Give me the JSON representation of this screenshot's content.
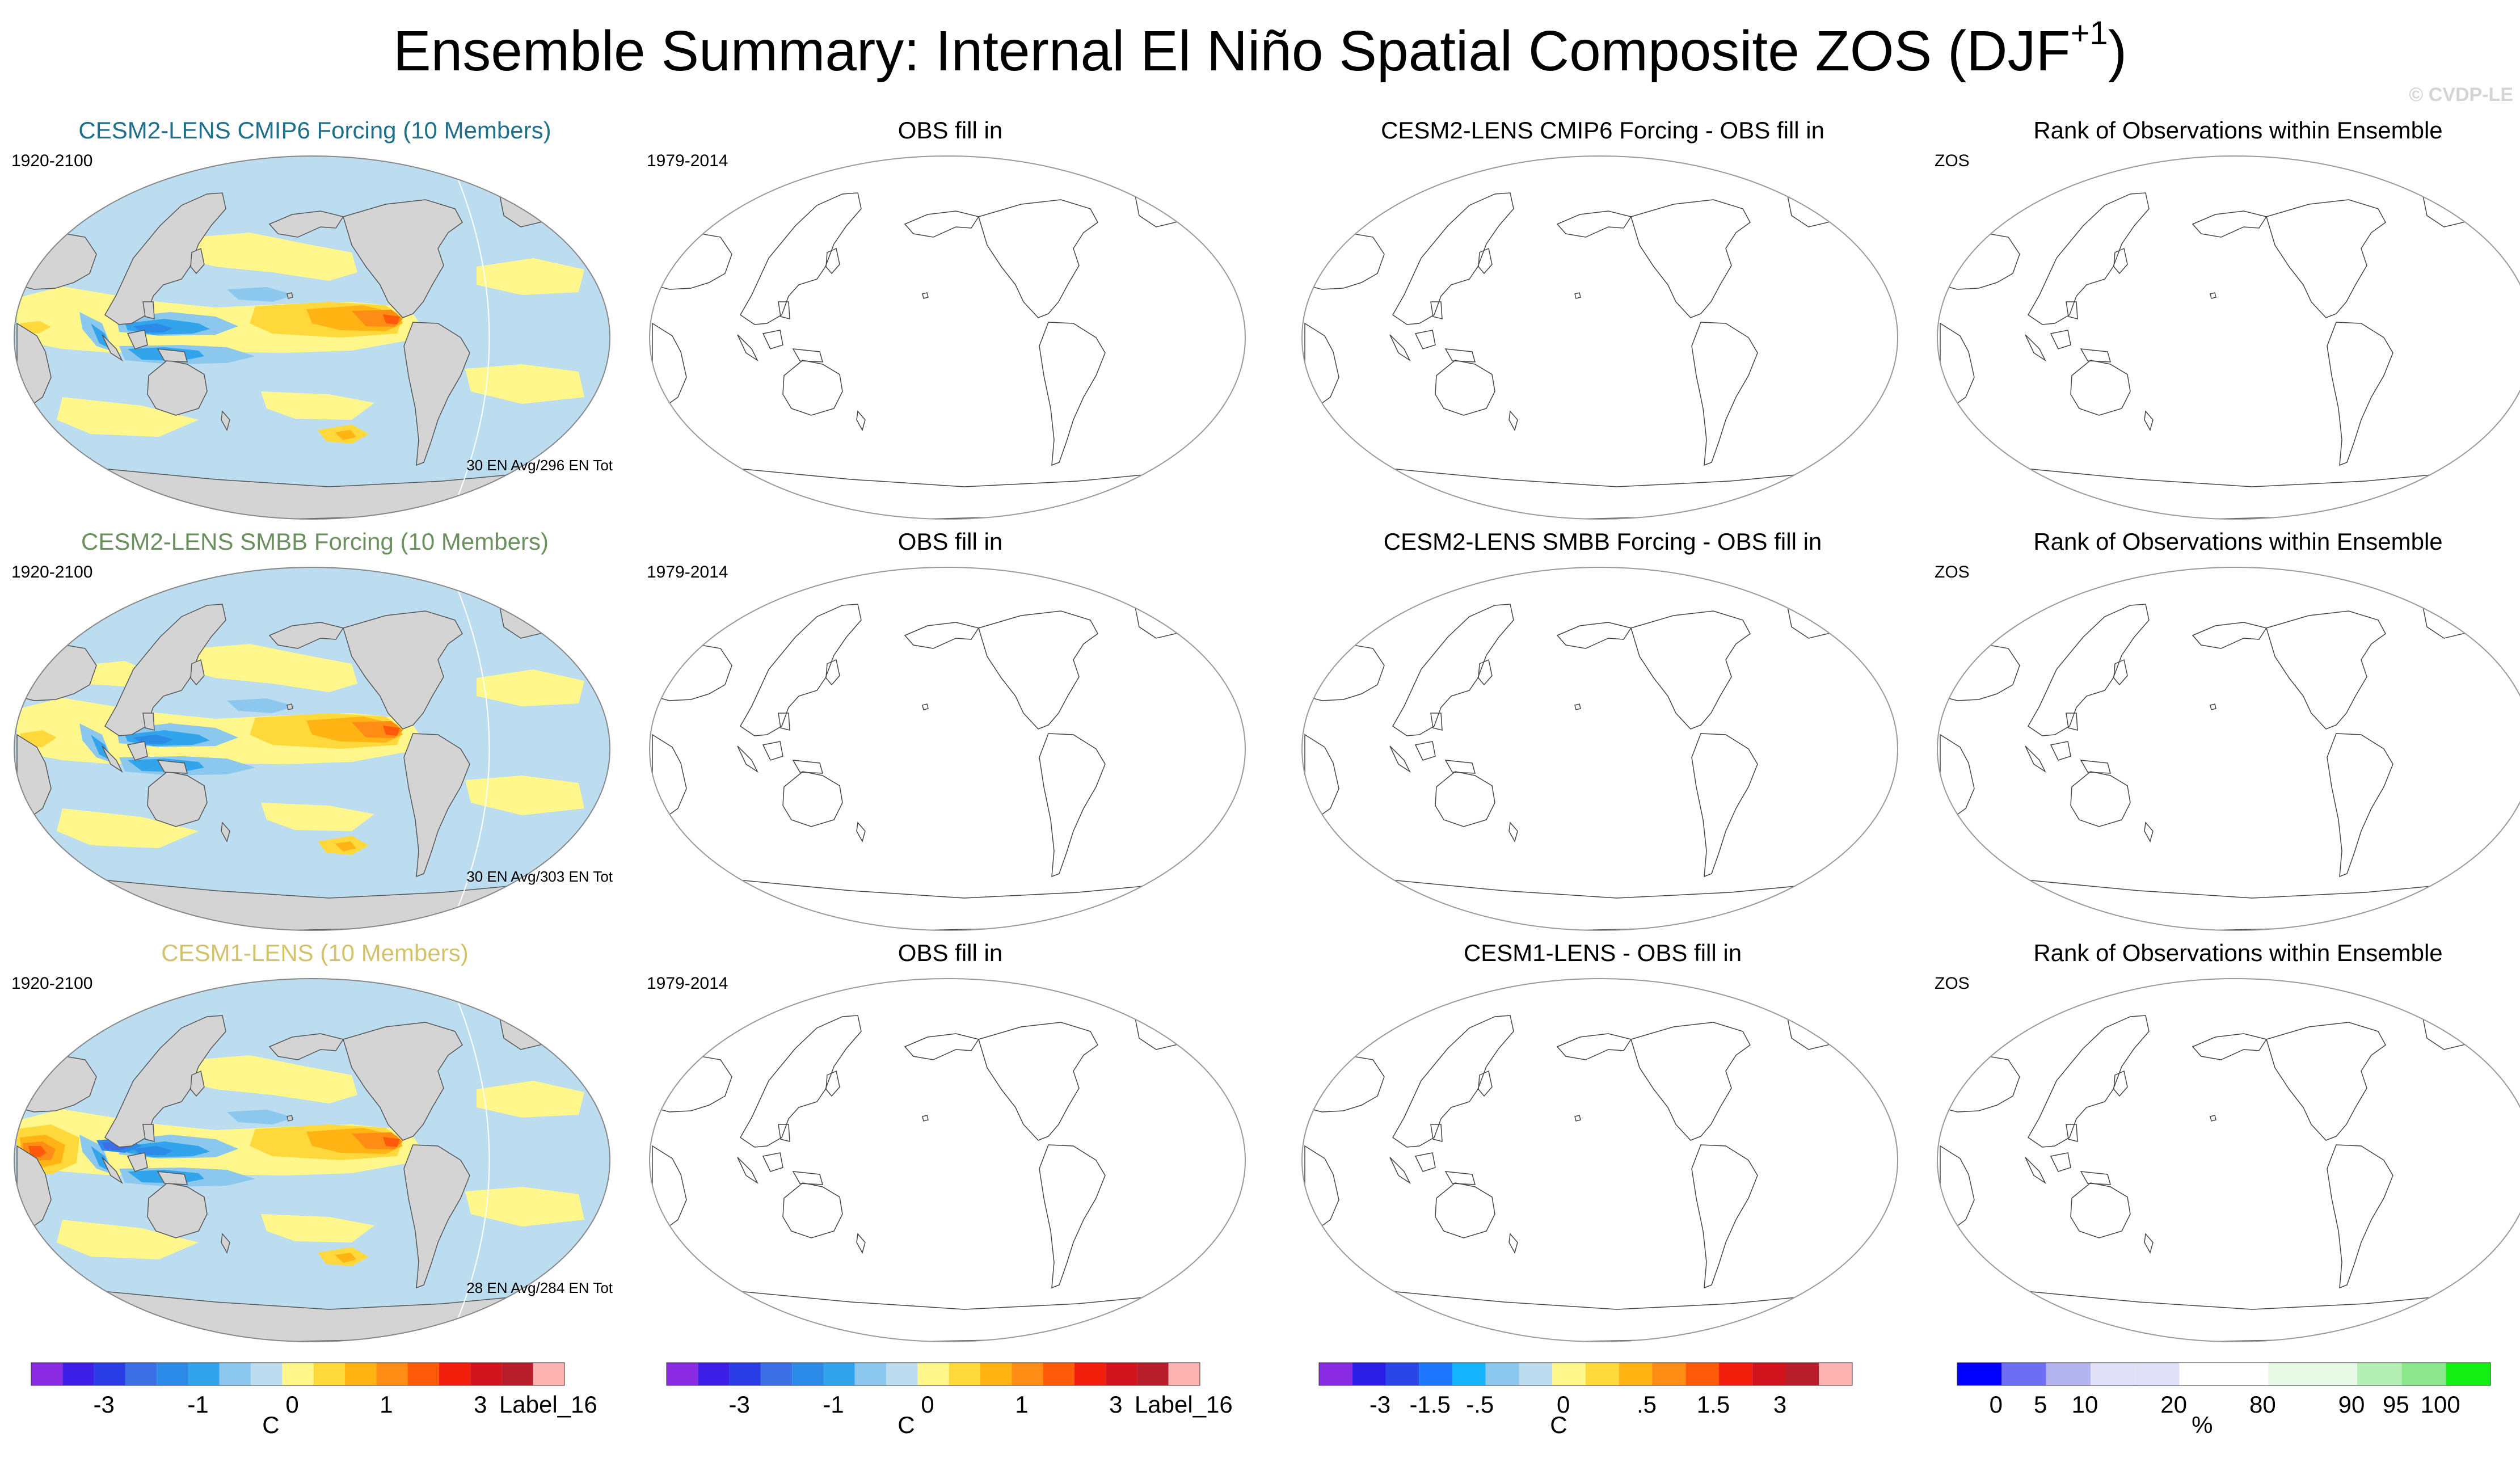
{
  "title": {
    "main": "Ensemble Summary: Internal El Niño Spatial Composite ZOS (DJF",
    "superscript": "+1",
    "close": ")"
  },
  "watermark": "© CVDP-LE",
  "rows": [
    {
      "model": {
        "title": "CESM2-LENS CMIP6 Forcing (10 Members)",
        "title_color": "#1f6f8b",
        "years": "1920-2100",
        "footnote": "30 EN Avg/296 EN Tot",
        "variant": 0
      },
      "obs": {
        "title": "OBS fill in",
        "years": "1979-2014"
      },
      "diff": {
        "title": "CESM2-LENS CMIP6 Forcing - OBS fill in"
      },
      "rank": {
        "title": "Rank of Observations within Ensemble",
        "label": "ZOS"
      }
    },
    {
      "model": {
        "title": "CESM2-LENS SMBB Forcing (10 Members)",
        "title_color": "#6b8f5e",
        "years": "1920-2100",
        "footnote": "30 EN Avg/303 EN Tot",
        "variant": 1
      },
      "obs": {
        "title": "OBS fill in",
        "years": "1979-2014"
      },
      "diff": {
        "title": "CESM2-LENS SMBB Forcing - OBS fill in"
      },
      "rank": {
        "title": "Rank of Observations within Ensemble",
        "label": "ZOS"
      }
    },
    {
      "model": {
        "title": "CESM1-LENS (10 Members)",
        "title_color": "#d2c36a",
        "years": "1920-2100",
        "footnote": "28 EN Avg/284 EN Tot",
        "variant": 2
      },
      "obs": {
        "title": "OBS fill in",
        "years": "1979-2014"
      },
      "diff": {
        "title": "CESM1-LENS - OBS fill in"
      },
      "rank": {
        "title": "Rank of Observations within Ensemble",
        "label": "ZOS"
      }
    }
  ],
  "colorbars": [
    {
      "colors": [
        "#8a2be2",
        "#3c1ee6",
        "#2a3ce6",
        "#3c6ee6",
        "#2c8ae8",
        "#32a4ec",
        "#8cc8ee",
        "#bcdcf0",
        "#fff78c",
        "#ffd93c",
        "#ffb414",
        "#ff8c14",
        "#ff5a0a",
        "#f01e0a",
        "#d2141e",
        "#b91e2d",
        "#ffb4b4"
      ],
      "ticks": [
        {
          "label": "-3",
          "pos": 2.5
        },
        {
          "label": "-1",
          "pos": 5.5
        },
        {
          "label": "0",
          "pos": 8.5
        },
        {
          "label": "1",
          "pos": 11.5
        },
        {
          "label": "3",
          "pos": 14.5
        },
        {
          "label": "Label_16",
          "pos": 17
        }
      ],
      "unit": "C"
    },
    {
      "colors": [
        "#8a2be2",
        "#3c1ee6",
        "#2a3ce6",
        "#3c6ee6",
        "#2c8ae8",
        "#32a4ec",
        "#8cc8ee",
        "#bcdcf0",
        "#fff78c",
        "#ffd93c",
        "#ffb414",
        "#ff8c14",
        "#ff5a0a",
        "#f01e0a",
        "#d2141e",
        "#b91e2d",
        "#ffb4b4"
      ],
      "ticks": [
        {
          "label": "-3",
          "pos": 2.5
        },
        {
          "label": "-1",
          "pos": 5.5
        },
        {
          "label": "0",
          "pos": 8.5
        },
        {
          "label": "1",
          "pos": 11.5
        },
        {
          "label": "3",
          "pos": 14.5
        },
        {
          "label": "Label_16",
          "pos": 17
        }
      ],
      "unit": "C"
    },
    {
      "colors": [
        "#8a2be2",
        "#2a1ee6",
        "#2a46e6",
        "#1e78ff",
        "#14b4ff",
        "#8cc8ee",
        "#bcdcf0",
        "#fff78c",
        "#ffd93c",
        "#ffb414",
        "#ff8c14",
        "#ff5a0a",
        "#f01e0a",
        "#d2141e",
        "#b91e2d",
        "#ffb4b4"
      ],
      "ticks": [
        {
          "label": "-3",
          "pos": 2
        },
        {
          "label": "-1.5",
          "pos": 3.5
        },
        {
          "label": "-.5",
          "pos": 5
        },
        {
          "label": "0",
          "pos": 7.5
        },
        {
          "label": ".5",
          "pos": 10
        },
        {
          "label": "1.5",
          "pos": 12
        },
        {
          "label": "3",
          "pos": 14
        }
      ],
      "unit": "C"
    },
    {
      "colors": [
        "#0000ff",
        "#6e6ef5",
        "#b4b4f0",
        "#e0e0f6",
        "#e0e0f6",
        "#ffffff",
        "#ffffff",
        "#e6fae6",
        "#e6fae6",
        "#b4f0b4",
        "#8ce68c",
        "#14f014"
      ],
      "ticks": [
        {
          "label": "0",
          "pos": 1
        },
        {
          "label": "5",
          "pos": 2
        },
        {
          "label": "10",
          "pos": 3
        },
        {
          "label": "20",
          "pos": 5
        },
        {
          "label": "80",
          "pos": 7
        },
        {
          "label": "90",
          "pos": 9
        },
        {
          "label": "95",
          "pos": 10
        },
        {
          "label": "100",
          "pos": 11
        }
      ],
      "unit": "%"
    }
  ]
}
